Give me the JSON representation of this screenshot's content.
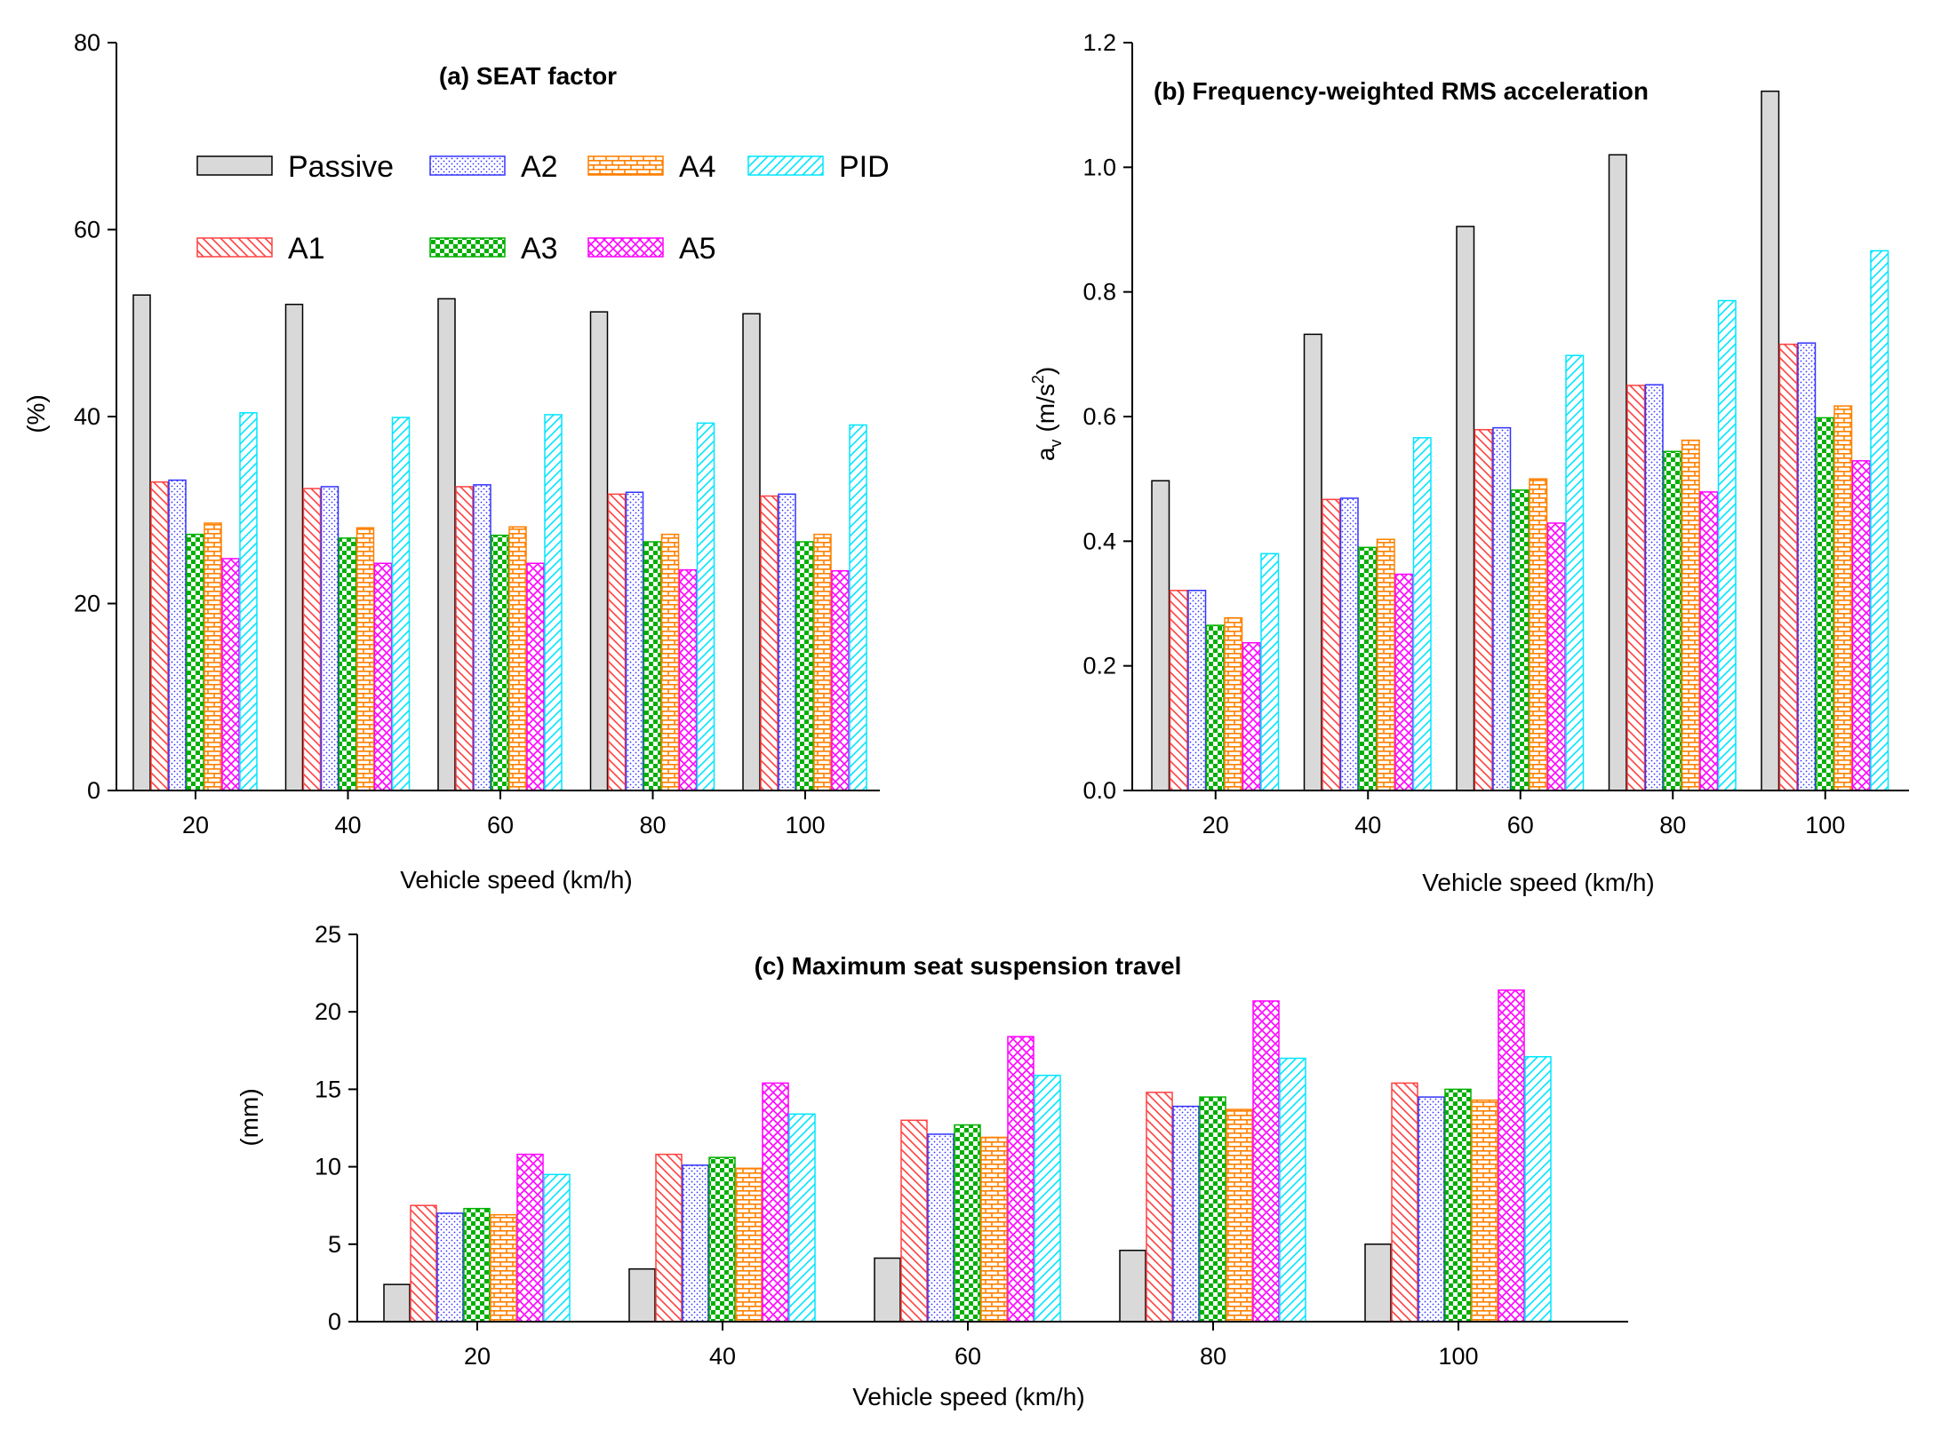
{
  "legend": {
    "items": [
      {
        "name": "Passive",
        "pattern": "passive"
      },
      {
        "name": "A1",
        "pattern": "a1"
      },
      {
        "name": "A2",
        "pattern": "a2"
      },
      {
        "name": "A3",
        "pattern": "a3"
      },
      {
        "name": "A4",
        "pattern": "a4"
      },
      {
        "name": "A5",
        "pattern": "a5"
      },
      {
        "name": "PID",
        "pattern": "pid"
      }
    ]
  },
  "colors": {
    "passive_fill": "#d9d9d9",
    "a1": "#ff4040",
    "a2": "#3333ff",
    "a3": "#00b000",
    "a4": "#ff8000",
    "a5": "#ff00ff",
    "pid": "#00e5ff"
  },
  "chart_data": [
    {
      "type": "bar",
      "title": "(a) SEAT factor",
      "xlabel": "Vehicle speed (km/h)",
      "ylabel": "(%)",
      "ylim": [
        0,
        80
      ],
      "yticks": [
        "0",
        "20",
        "40",
        "60",
        "80"
      ],
      "categories": [
        "20",
        "40",
        "60",
        "80",
        "100"
      ],
      "series": [
        {
          "name": "Passive",
          "values": [
            53.0,
            52.0,
            52.6,
            51.2,
            51.0
          ]
        },
        {
          "name": "A1",
          "values": [
            33.0,
            32.3,
            32.5,
            31.7,
            31.5
          ]
        },
        {
          "name": "A2",
          "values": [
            33.2,
            32.5,
            32.7,
            31.9,
            31.7
          ]
        },
        {
          "name": "A3",
          "values": [
            27.4,
            27.0,
            27.3,
            26.6,
            26.6
          ]
        },
        {
          "name": "A4",
          "values": [
            28.6,
            28.1,
            28.2,
            27.4,
            27.4
          ]
        },
        {
          "name": "A5",
          "values": [
            24.8,
            24.3,
            24.3,
            23.6,
            23.5
          ]
        },
        {
          "name": "PID",
          "values": [
            40.4,
            39.9,
            40.2,
            39.3,
            39.1
          ]
        }
      ]
    },
    {
      "type": "bar",
      "title": "(b)  Frequency-weighted RMS acceleration",
      "xlabel": "Vehicle speed (km/h)",
      "ylabel_main": "a",
      "ylabel_sub": "v",
      "ylabel_unit": "(m/s",
      "ylabel_sup": "2",
      "ylabel_close": ")",
      "ylim": [
        0,
        1.2
      ],
      "yticks": [
        "0.0",
        "0.2",
        "0.4",
        "0.6",
        "0.8",
        "1.0",
        "1.2"
      ],
      "categories": [
        "20",
        "40",
        "60",
        "80",
        "100"
      ],
      "series": [
        {
          "name": "Passive",
          "values": [
            0.497,
            0.732,
            0.905,
            1.02,
            1.122
          ]
        },
        {
          "name": "A1",
          "values": [
            0.321,
            0.467,
            0.579,
            0.65,
            0.716
          ]
        },
        {
          "name": "A2",
          "values": [
            0.321,
            0.469,
            0.582,
            0.651,
            0.718
          ]
        },
        {
          "name": "A3",
          "values": [
            0.265,
            0.39,
            0.482,
            0.544,
            0.598
          ]
        },
        {
          "name": "A4",
          "values": [
            0.277,
            0.403,
            0.5,
            0.562,
            0.617
          ]
        },
        {
          "name": "A5",
          "values": [
            0.237,
            0.347,
            0.429,
            0.479,
            0.529
          ]
        },
        {
          "name": "PID",
          "values": [
            0.38,
            0.566,
            0.698,
            0.786,
            0.866
          ]
        }
      ]
    },
    {
      "type": "bar",
      "title": "(c) Maximum seat suspension travel",
      "xlabel": "Vehicle speed (km/h)",
      "ylabel": "(mm)",
      "ylim": [
        0,
        25
      ],
      "yticks": [
        "0",
        "5",
        "10",
        "15",
        "20",
        "25"
      ],
      "categories": [
        "20",
        "40",
        "60",
        "80",
        "100"
      ],
      "series": [
        {
          "name": "Passive",
          "values": [
            2.4,
            3.4,
            4.1,
            4.6,
            5.0
          ]
        },
        {
          "name": "A1",
          "values": [
            7.5,
            10.8,
            13.0,
            14.8,
            15.4
          ]
        },
        {
          "name": "A2",
          "values": [
            7.0,
            10.1,
            12.1,
            13.9,
            14.5
          ]
        },
        {
          "name": "A3",
          "values": [
            7.3,
            10.6,
            12.7,
            14.5,
            15.0
          ]
        },
        {
          "name": "A4",
          "values": [
            6.9,
            9.9,
            11.9,
            13.7,
            14.3
          ]
        },
        {
          "name": "A5",
          "values": [
            10.8,
            15.4,
            18.4,
            20.7,
            21.4
          ]
        },
        {
          "name": "PID",
          "values": [
            9.5,
            13.4,
            15.9,
            17.0,
            17.1
          ]
        }
      ]
    }
  ]
}
